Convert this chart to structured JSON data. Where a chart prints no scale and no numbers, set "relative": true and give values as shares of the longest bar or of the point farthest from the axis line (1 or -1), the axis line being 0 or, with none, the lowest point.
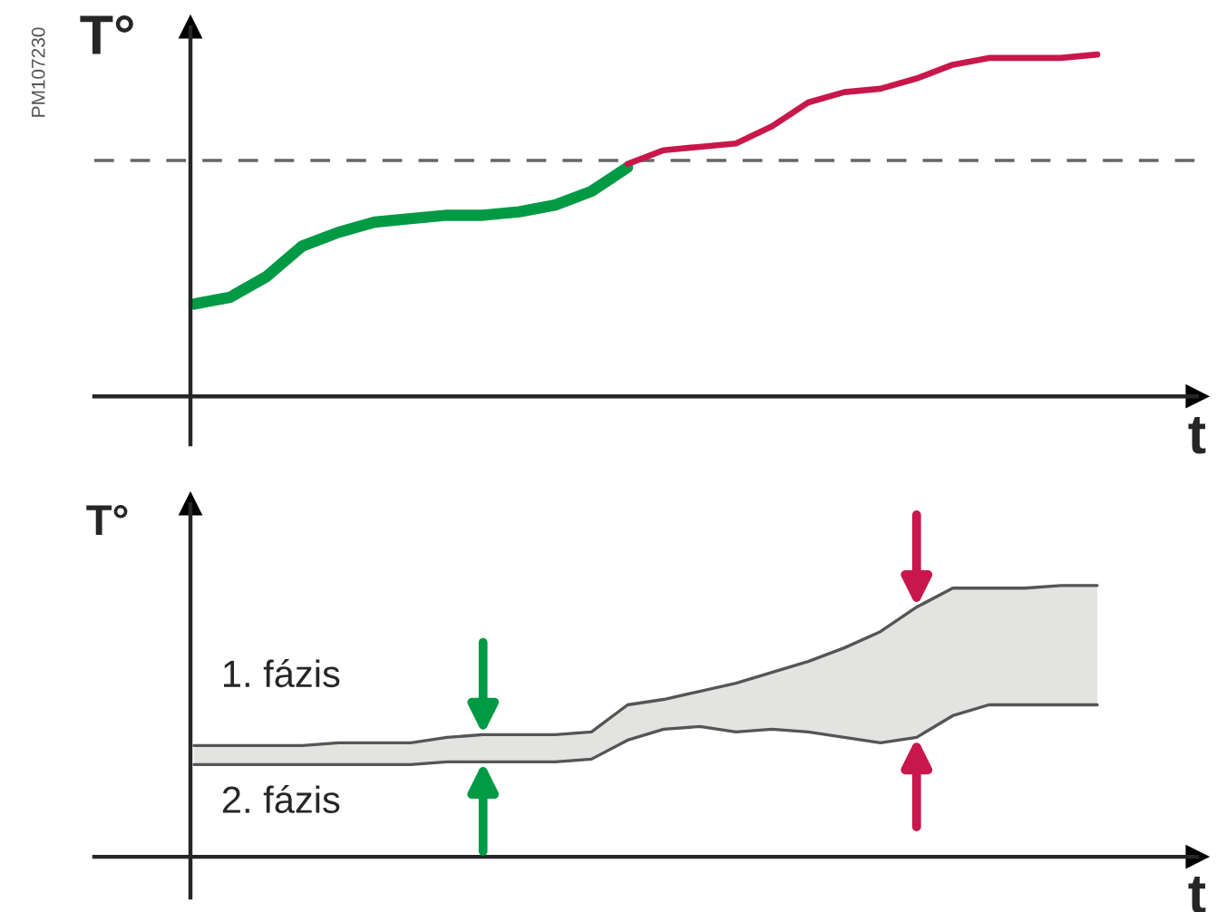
{
  "chart_data": [
    {
      "type": "line",
      "relative": true,
      "ylabel": "T°",
      "xlabel": "t",
      "categories": [
        null,
        null,
        null,
        null,
        null,
        null,
        null,
        null,
        null,
        null,
        null,
        null,
        null,
        null,
        null,
        null,
        null,
        null,
        null,
        null,
        null,
        null,
        null,
        null,
        null,
        null
      ],
      "series": [
        {
          "color": "#009a44",
          "values": [
            0.27,
            0.29,
            0.35,
            0.44,
            0.48,
            0.51,
            0.52,
            0.53,
            0.53,
            0.54,
            0.56,
            0.6,
            0.67,
            null,
            null,
            null,
            null,
            null,
            null,
            null,
            null,
            null,
            null,
            null,
            null,
            null
          ]
        },
        {
          "color": "#c8174a",
          "values": [
            null,
            null,
            null,
            null,
            null,
            null,
            null,
            null,
            null,
            null,
            null,
            null,
            0.68,
            0.72,
            0.73,
            0.74,
            0.79,
            0.86,
            0.89,
            0.9,
            0.93,
            0.97,
            0.99,
            0.99,
            0.99,
            1
          ]
        }
      ],
      "ref_lines": [
        {
          "axis": "y",
          "value": 0.69,
          "color": "#666666",
          "line_style": "dashed"
        }
      ],
      "annotations": [
        "PM107230"
      ]
    },
    {
      "type": "line",
      "relative": true,
      "ylabel": "T°",
      "xlabel": "t",
      "categories": [
        null,
        null,
        null,
        null,
        null,
        null,
        null,
        null,
        null,
        null,
        null,
        null,
        null,
        null,
        null,
        null,
        null,
        null,
        null,
        null,
        null,
        null,
        null,
        null,
        null,
        null
      ],
      "series": [
        {
          "color": "#555555",
          "values": [
            0.41,
            0.41,
            0.41,
            0.41,
            0.42,
            0.42,
            0.42,
            0.44,
            0.45,
            0.45,
            0.45,
            0.46,
            0.56,
            0.58,
            0.61,
            0.64,
            0.68,
            0.72,
            0.77,
            0.83,
            0.92,
            0.99,
            0.99,
            0.99,
            1,
            1
          ],
          "upper": [
            0.41,
            0.41,
            0.41,
            0.41,
            0.42,
            0.42,
            0.42,
            0.44,
            0.45,
            0.45,
            0.45,
            0.46,
            0.56,
            0.58,
            0.61,
            0.64,
            0.68,
            0.72,
            0.77,
            0.83,
            0.92,
            0.99,
            0.99,
            0.99,
            1,
            1
          ],
          "lower": [
            0.34,
            0.34,
            0.34,
            0.34,
            0.34,
            0.34,
            0.34,
            0.35,
            0.35,
            0.35,
            0.35,
            0.36,
            0.43,
            0.47,
            0.48,
            0.46,
            0.47,
            0.46,
            0.44,
            0.42,
            0.44,
            0.52,
            0.56,
            0.56,
            0.56,
            0.56
          ]
        },
        {
          "color": "#555555",
          "values": [
            0.34,
            0.34,
            0.34,
            0.34,
            0.34,
            0.34,
            0.34,
            0.35,
            0.35,
            0.35,
            0.35,
            0.36,
            0.43,
            0.47,
            0.48,
            0.46,
            0.47,
            0.46,
            0.44,
            0.42,
            0.44,
            0.52,
            0.56,
            0.56,
            0.56,
            0.56
          ]
        }
      ],
      "annotations": [
        "1. fázis",
        "2. fázis"
      ]
    }
  ]
}
